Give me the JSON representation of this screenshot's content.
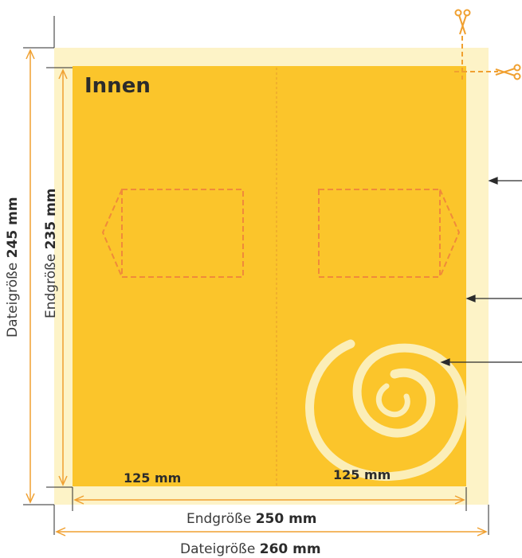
{
  "title": "Innen",
  "panels": [
    {
      "width_label": "125 mm"
    },
    {
      "width_label": "125 mm"
    }
  ],
  "dimensions": {
    "final_width": {
      "prefix": "Endgröße",
      "value": "250 mm"
    },
    "file_width": {
      "prefix": "Dateigröße",
      "value": "260 mm"
    },
    "final_height": {
      "prefix": "Endgröße",
      "value": "235 mm"
    },
    "file_height": {
      "prefix": "Dateigröße",
      "value": "245 mm"
    }
  },
  "colors": {
    "bleed": "#fdf3c7",
    "panel": "#fbc52b",
    "accent": "#f0a030",
    "dashed": "#f08a3a",
    "swirl": "#fbeeb8",
    "arrow": "#2b2b2b"
  },
  "icons": [
    "scissors-icon",
    "scissors-icon"
  ]
}
